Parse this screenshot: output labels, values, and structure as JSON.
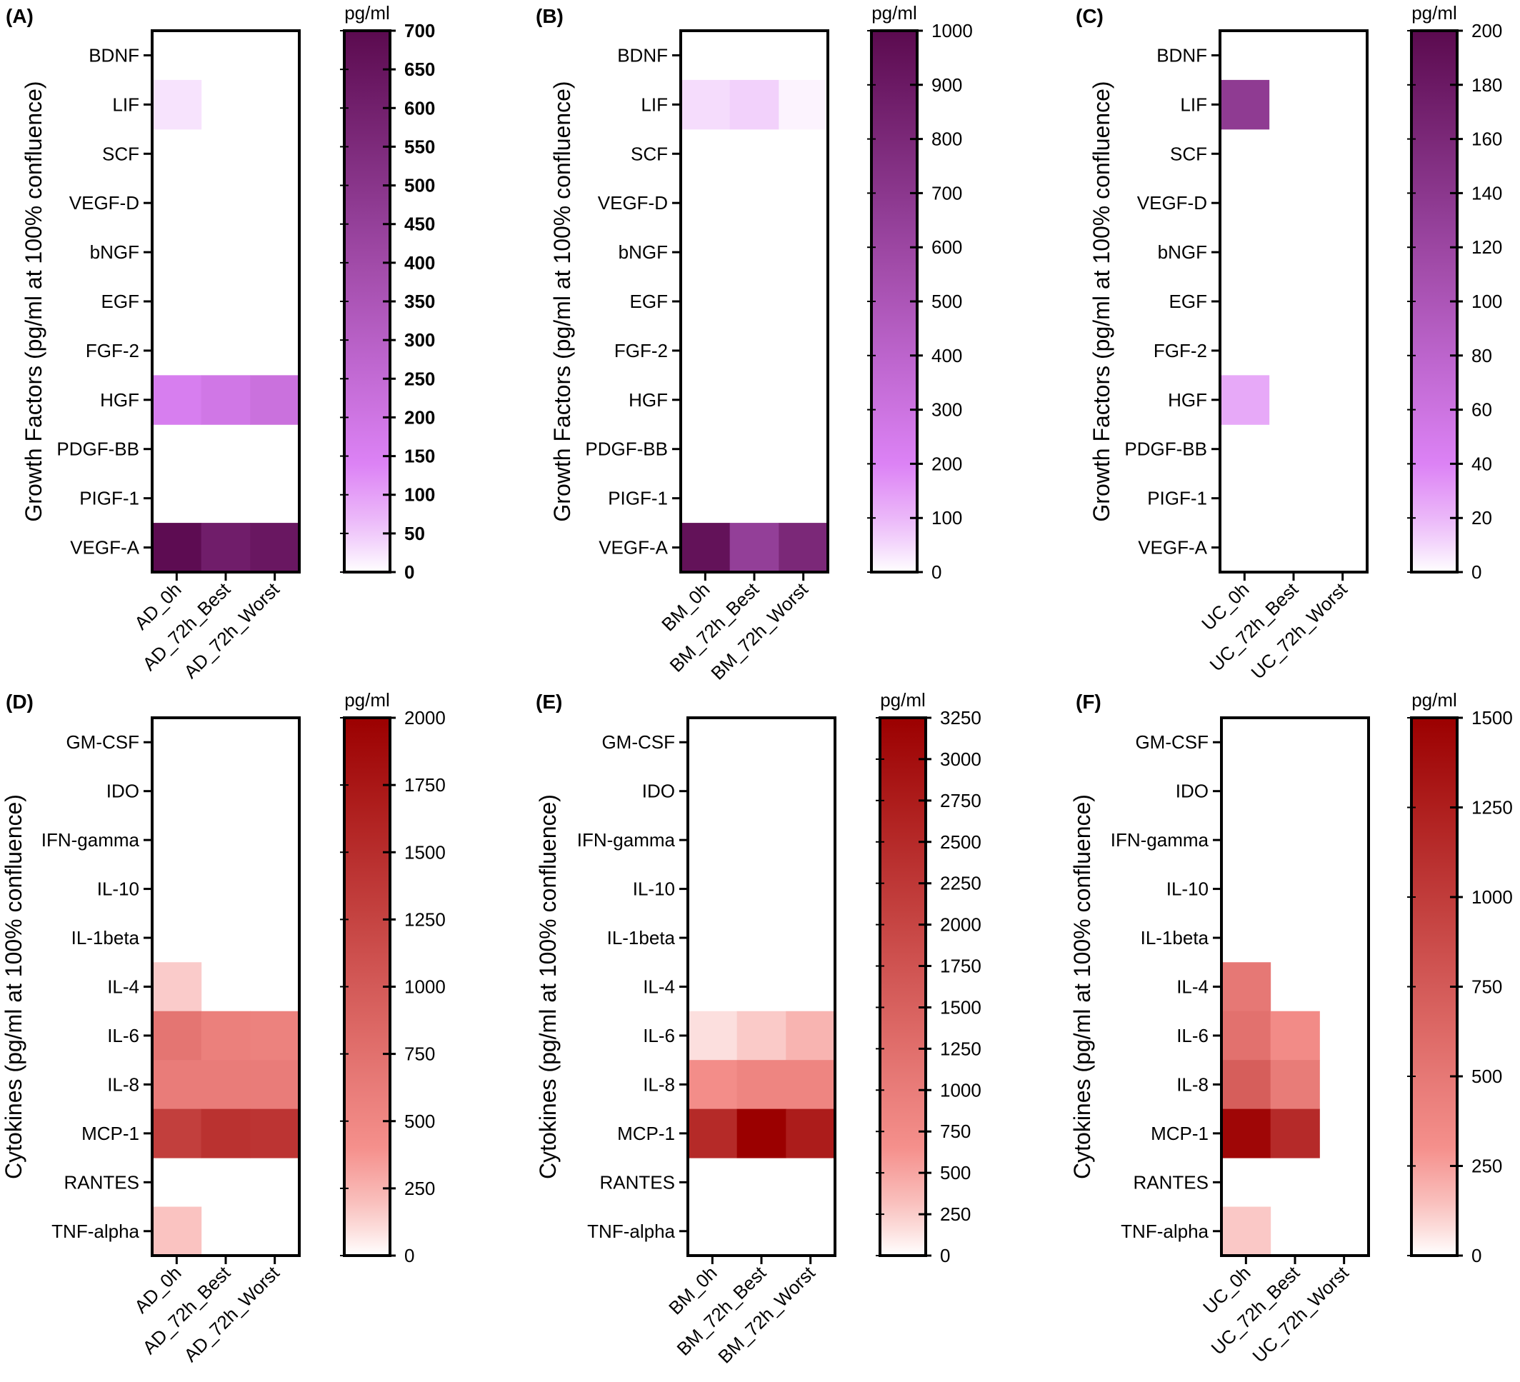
{
  "chart_data": [
    {
      "panel": "(A)",
      "type": "heatmap",
      "ylabel": "Growth Factors (pg/ml at 100% confluence)",
      "unit": "pg/ml",
      "rows": [
        "BDNF",
        "LIF",
        "SCF",
        "VEGF-D",
        "bNGF",
        "EGF",
        "FGF-2",
        "HGF",
        "PDGF-BB",
        "PIGF-1",
        "VEGF-A"
      ],
      "columns": [
        "AD_0h",
        "AD_72h_Best",
        "AD_72h_Worst"
      ],
      "values": [
        [
          0,
          0,
          0
        ],
        [
          25,
          0,
          0
        ],
        [
          0,
          0,
          0
        ],
        [
          0,
          0,
          0
        ],
        [
          0,
          0,
          0
        ],
        [
          0,
          0,
          0
        ],
        [
          0,
          0,
          0
        ],
        [
          160,
          190,
          220
        ],
        [
          0,
          0,
          0
        ],
        [
          0,
          0,
          0
        ],
        [
          690,
          610,
          640
        ]
      ],
      "scale": {
        "min": 0,
        "max": 700,
        "ticks": [
          0,
          50,
          100,
          150,
          200,
          250,
          300,
          350,
          400,
          450,
          500,
          550,
          600,
          650,
          700
        ],
        "bold": true
      },
      "palette": "purple"
    },
    {
      "panel": "(B)",
      "type": "heatmap",
      "ylabel": "Growth Factors (pg/ml at 100% confluence)",
      "unit": "pg/ml",
      "rows": [
        "BDNF",
        "LIF",
        "SCF",
        "VEGF-D",
        "bNGF",
        "EGF",
        "FGF-2",
        "HGF",
        "PDGF-BB",
        "PIGF-1",
        "VEGF-A"
      ],
      "columns": [
        "BM_0h",
        "BM_72h_Best",
        "BM_72h_Worst"
      ],
      "values": [
        [
          0,
          0,
          0
        ],
        [
          45,
          60,
          15
        ],
        [
          0,
          0,
          0
        ],
        [
          0,
          0,
          0
        ],
        [
          0,
          0,
          0
        ],
        [
          0,
          0,
          0
        ],
        [
          0,
          0,
          0
        ],
        [
          0,
          0,
          0
        ],
        [
          0,
          0,
          0
        ],
        [
          0,
          0,
          0
        ],
        [
          950,
          650,
          800
        ]
      ],
      "scale": {
        "min": 0,
        "max": 1000,
        "ticks": [
          0,
          100,
          200,
          300,
          400,
          500,
          600,
          700,
          800,
          900,
          1000
        ],
        "bold": false
      },
      "palette": "purple"
    },
    {
      "panel": "(C)",
      "type": "heatmap",
      "ylabel": "Growth Factors (pg/ml at 100% confluence)",
      "unit": "pg/ml",
      "rows": [
        "BDNF",
        "LIF",
        "SCF",
        "VEGF-D",
        "bNGF",
        "EGF",
        "FGF-2",
        "HGF",
        "PDGF-BB",
        "PIGF-1",
        "VEGF-A"
      ],
      "columns": [
        "UC_0h",
        "UC_72h_Best",
        "UC_72h_Worst"
      ],
      "values": [
        [
          0,
          0,
          0
        ],
        [
          135,
          0,
          0
        ],
        [
          0,
          0,
          0
        ],
        [
          0,
          0,
          0
        ],
        [
          0,
          0,
          0
        ],
        [
          0,
          0,
          0
        ],
        [
          0,
          0,
          0
        ],
        [
          25,
          0,
          0
        ],
        [
          0,
          0,
          0
        ],
        [
          0,
          0,
          0
        ],
        [
          0,
          0,
          0
        ]
      ],
      "scale": {
        "min": 0,
        "max": 200,
        "ticks": [
          0,
          20,
          40,
          60,
          80,
          100,
          120,
          140,
          160,
          180,
          200
        ],
        "bold": false
      },
      "palette": "purple"
    },
    {
      "panel": "(D)",
      "type": "heatmap",
      "ylabel": "Cytokines (pg/ml at 100% confluence)",
      "unit": "pg/ml",
      "rows": [
        "GM-CSF",
        "IDO",
        "IFN-gamma",
        "IL-10",
        "IL-1beta",
        "IL-4",
        "IL-6",
        "IL-8",
        "MCP-1",
        "RANTES",
        "TNF-alpha"
      ],
      "columns": [
        "AD_0h",
        "AD_72h_Best",
        "AD_72h_Worst"
      ],
      "values": [
        [
          0,
          0,
          0
        ],
        [
          0,
          0,
          0
        ],
        [
          0,
          0,
          0
        ],
        [
          0,
          0,
          0
        ],
        [
          0,
          0,
          0
        ],
        [
          150,
          0,
          0
        ],
        [
          700,
          580,
          560
        ],
        [
          620,
          620,
          620
        ],
        [
          1300,
          1450,
          1420
        ],
        [
          0,
          0,
          0
        ],
        [
          180,
          0,
          0
        ]
      ],
      "scale": {
        "min": 0,
        "max": 2000,
        "ticks": [
          0,
          250,
          500,
          750,
          1000,
          1250,
          1500,
          1750,
          2000
        ],
        "bold": false
      },
      "palette": "red"
    },
    {
      "panel": "(E)",
      "type": "heatmap",
      "ylabel": "Cytokines (pg/ml at 100% confluence)",
      "unit": "pg/ml",
      "rows": [
        "GM-CSF",
        "IDO",
        "IFN-gamma",
        "IL-10",
        "IL-1beta",
        "IL-4",
        "IL-6",
        "IL-8",
        "MCP-1",
        "RANTES",
        "TNF-alpha"
      ],
      "columns": [
        "BM_0h",
        "BM_72h_Best",
        "BM_72h_Worst"
      ],
      "values": [
        [
          0,
          0,
          0
        ],
        [
          0,
          0,
          0
        ],
        [
          0,
          0,
          0
        ],
        [
          0,
          0,
          0
        ],
        [
          0,
          0,
          0
        ],
        [
          0,
          0,
          0
        ],
        [
          150,
          250,
          400
        ],
        [
          700,
          850,
          850
        ],
        [
          2500,
          3250,
          2750
        ],
        [
          0,
          0,
          0
        ],
        [
          0,
          0,
          0
        ]
      ],
      "scale": {
        "min": 0,
        "max": 3250,
        "ticks": [
          0,
          250,
          500,
          750,
          1000,
          1250,
          1500,
          1750,
          2000,
          2250,
          2500,
          2750,
          3000,
          3250
        ],
        "bold": false
      },
      "palette": "red"
    },
    {
      "panel": "(F)",
      "type": "heatmap",
      "ylabel": "Cytokines (pg/ml at 100% confluence)",
      "unit": "pg/ml",
      "rows": [
        "GM-CSF",
        "IDO",
        "IFN-gamma",
        "IL-10",
        "IL-1beta",
        "IL-4",
        "IL-6",
        "IL-8",
        "MCP-1",
        "RANTES",
        "TNF-alpha"
      ],
      "columns": [
        "UC_0h",
        "UC_72h_Best",
        "UC_72h_Worst"
      ],
      "values": [
        [
          0,
          0,
          0
        ],
        [
          0,
          0,
          0
        ],
        [
          0,
          0,
          0
        ],
        [
          0,
          0,
          0
        ],
        [
          0,
          0,
          0
        ],
        [
          0,
          0,
          0
        ],
        [
          0,
          0,
          0
        ],
        [
          0,
          0,
          0
        ],
        [
          0,
          0,
          0
        ],
        [
          0,
          0,
          0
        ],
        [
          0,
          0,
          0
        ]
      ],
      "values_override": {
        "IL-4": [
          500,
          0,
          0
        ],
        "IL-6": [
          560,
          340,
          0
        ],
        "IL-8": [
          720,
          470,
          0
        ],
        "MCP-1": [
          1450,
          1150,
          0
        ],
        "TNF-alpha": [
          120,
          0,
          0
        ]
      },
      "scale": {
        "min": 0,
        "max": 1500,
        "ticks": [
          0,
          250,
          500,
          750,
          1000,
          1250,
          1500
        ],
        "bold": false
      },
      "palette": "red"
    }
  ],
  "colors": {
    "purple_low": "#ffffff",
    "purple_mid": "#dc82f5",
    "purple_high": "#5b0a4f",
    "red_low": "#ffffff",
    "red_mid": "#f5908c",
    "red_high": "#9b0000"
  }
}
